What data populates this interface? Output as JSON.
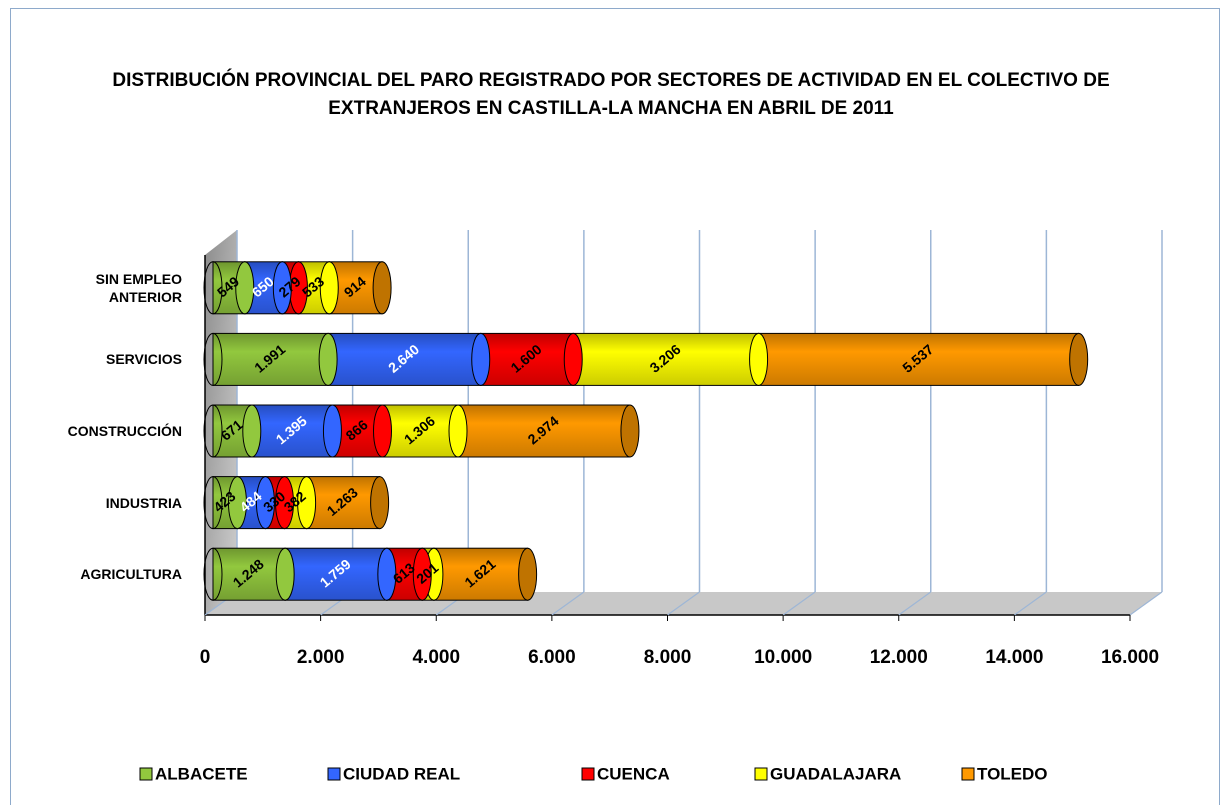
{
  "chart_data": {
    "type": "bar",
    "orientation": "horizontal",
    "stacked": true,
    "title": "DISTRIBUCIÓN PROVINCIAL DEL PARO REGISTRADO POR SECTORES DE ACTIVIDAD EN EL COLECTIVO DE EXTRANJEROS EN CASTILLA-LA MANCHA EN ABRIL DE 2011",
    "categories": [
      "AGRICULTURA",
      "INDUSTRIA",
      "CONSTRUCCIÓN",
      "SERVICIOS",
      "SIN EMPLEO ANTERIOR"
    ],
    "series": [
      {
        "name": "ALBACETE",
        "color": "#92c83e",
        "values": [
          1248,
          423,
          671,
          1991,
          549
        ],
        "value_labels": [
          "1.248",
          "423",
          "671",
          "1.991",
          "549"
        ]
      },
      {
        "name": "CIUDAD REAL",
        "color": "#3366ff",
        "values": [
          1759,
          484,
          1395,
          2640,
          650
        ],
        "value_labels": [
          "1.759",
          "484",
          "1.395",
          "2.640",
          "650"
        ]
      },
      {
        "name": "CUENCA",
        "color": "#ff0000",
        "values": [
          613,
          330,
          866,
          1600,
          279
        ],
        "value_labels": [
          "613",
          "330",
          "866",
          "1.600",
          "279"
        ]
      },
      {
        "name": "GUADALAJARA",
        "color": "#ffff00",
        "values": [
          201,
          382,
          1306,
          3206,
          533
        ],
        "value_labels": [
          "201",
          "382",
          "1.306",
          "3.206",
          "533"
        ]
      },
      {
        "name": "TOLEDO",
        "color": "#ff9900",
        "values": [
          1621,
          1263,
          2974,
          5537,
          914
        ],
        "value_labels": [
          "1.621",
          "1.263",
          "2.974",
          "5.537",
          "914"
        ]
      }
    ],
    "xlim": [
      0,
      16000
    ],
    "xticks": [
      0,
      {
        "value": 2000,
        "label": "2.000"
      },
      {
        "value": 4000,
        "label": "4.000"
      },
      {
        "value": 6000,
        "label": "6.000"
      },
      {
        "value": 8000,
        "label": "8.000"
      },
      {
        "value": 10000,
        "label": "10.000"
      },
      {
        "value": 12000,
        "label": "12.000"
      },
      {
        "value": 14000,
        "label": "14.000"
      },
      {
        "value": 16000,
        "label": "16.000"
      }
    ],
    "grid": true,
    "legend": "bottom"
  }
}
